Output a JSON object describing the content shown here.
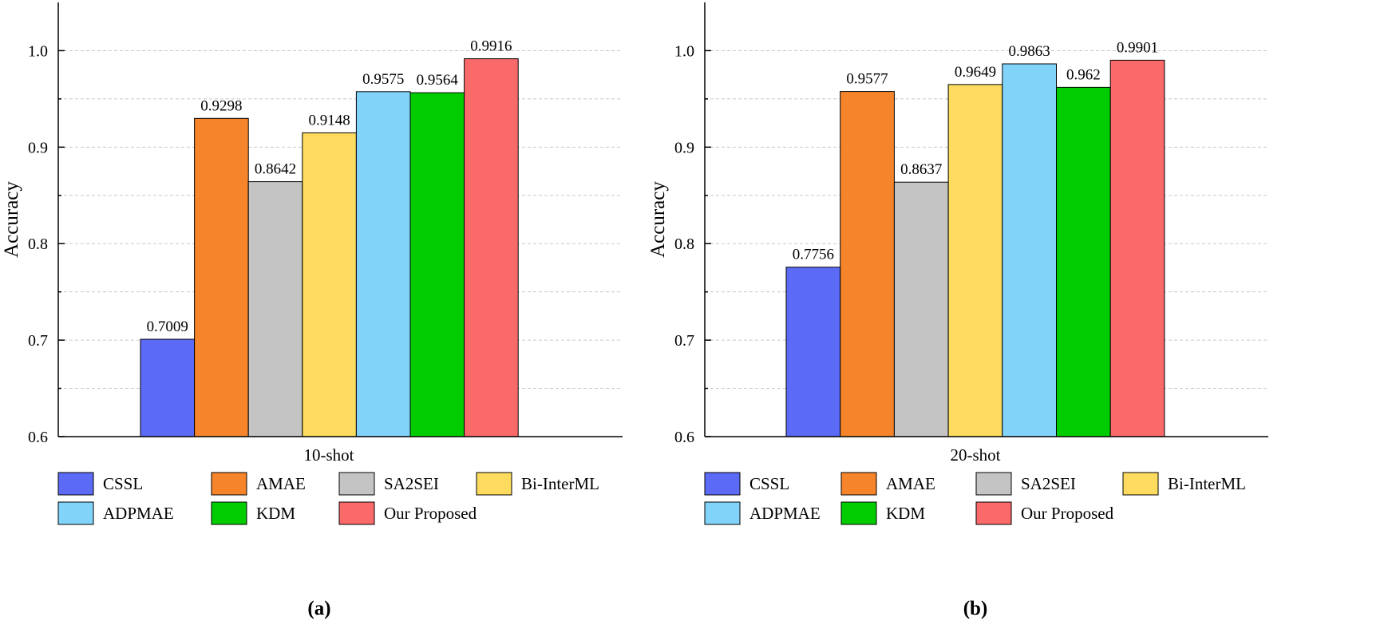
{
  "chart_data": [
    {
      "type": "bar",
      "panel_label": "(a)",
      "xlabel": "10-shot",
      "ylabel": "Accuracy",
      "ylim": [
        0.6,
        1.05
      ],
      "yticks": [
        0.6,
        0.7,
        0.8,
        0.9,
        1.0
      ],
      "ytick_labels": [
        "0.6",
        "0.7",
        "0.8",
        "0.9",
        "1.0"
      ],
      "grid": true,
      "series": [
        {
          "name": "CSSL",
          "value": 0.7009,
          "label": "0.7009",
          "color": "#5b6bf5"
        },
        {
          "name": "AMAE",
          "value": 0.9298,
          "label": "0.9298",
          "color": "#f5842b"
        },
        {
          "name": "SA2SEI",
          "value": 0.8642,
          "label": "0.8642",
          "color": "#c4c4c4"
        },
        {
          "name": "Bi-InterML",
          "value": 0.9148,
          "label": "0.9148",
          "color": "#fcdb5e"
        },
        {
          "name": "ADPMAE",
          "value": 0.9575,
          "label": "0.9575",
          "color": "#82d3fa"
        },
        {
          "name": "KDM",
          "value": 0.9564,
          "label": "0.9564",
          "color": "#00cc00"
        },
        {
          "name": "Our Proposed",
          "value": 0.9916,
          "label": "0.9916",
          "color": "#fb6a6a"
        }
      ]
    },
    {
      "type": "bar",
      "panel_label": "(b)",
      "xlabel": "20-shot",
      "ylabel": "Accuracy",
      "ylim": [
        0.6,
        1.05
      ],
      "yticks": [
        0.6,
        0.7,
        0.8,
        0.9,
        1.0
      ],
      "ytick_labels": [
        "0.6",
        "0.7",
        "0.8",
        "0.9",
        "1.0"
      ],
      "grid": true,
      "series": [
        {
          "name": "CSSL",
          "value": 0.7756,
          "label": "0.7756",
          "color": "#5b6bf5"
        },
        {
          "name": "AMAE",
          "value": 0.9577,
          "label": "0.9577",
          "color": "#f5842b"
        },
        {
          "name": "SA2SEI",
          "value": 0.8637,
          "label": "0.8637",
          "color": "#c4c4c4"
        },
        {
          "name": "Bi-InterML",
          "value": 0.9649,
          "label": "0.9649",
          "color": "#fcdb5e"
        },
        {
          "name": "ADPMAE",
          "value": 0.9863,
          "label": "0.9863",
          "color": "#82d3fa"
        },
        {
          "name": "KDM",
          "value": 0.962,
          "label": "0.962",
          "color": "#00cc00"
        },
        {
          "name": "Our Proposed",
          "value": 0.9901,
          "label": "0.9901",
          "color": "#fb6a6a"
        }
      ]
    }
  ]
}
